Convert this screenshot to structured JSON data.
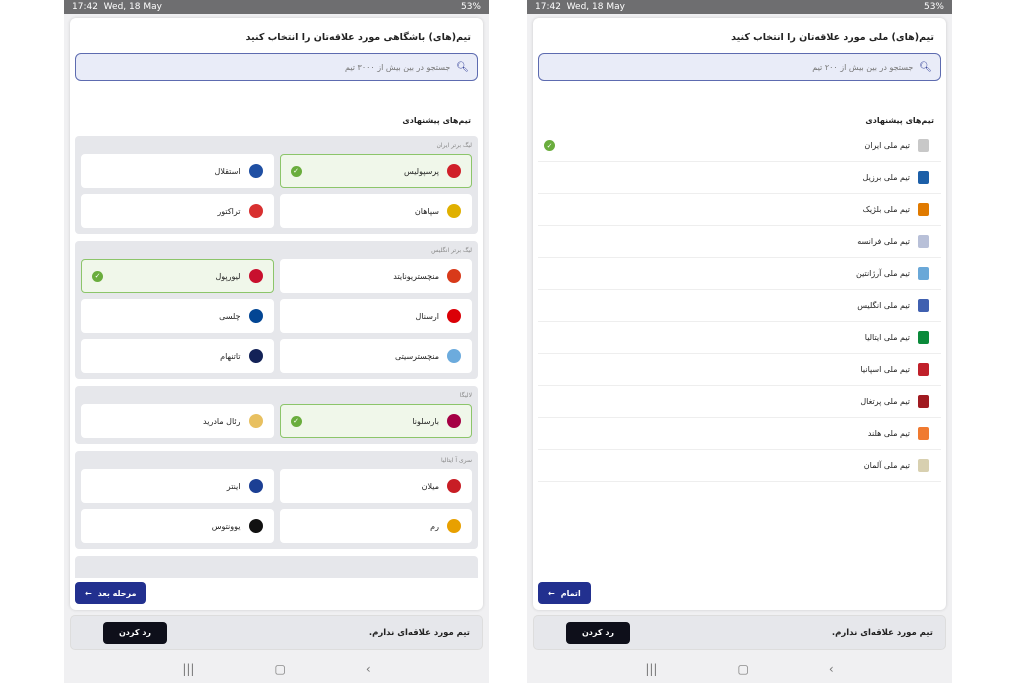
{
  "status": {
    "time": "17:42",
    "date": "Wed, 18 May",
    "battery": "53%"
  },
  "clubs": {
    "title": "تیم(های) باشگاهی مورد علاقه‌تان را انتخاب کنید",
    "search_placeholder": "جستجو در بین بیش از ۳۰۰۰ تیم",
    "suggested": "تیم‌های پیشنهادی",
    "groups": [
      {
        "label": "لیگ برتر ایران",
        "teams": [
          {
            "name": "پرسپولیس",
            "selected": true,
            "color": "#d0202a"
          },
          {
            "name": "استقلال",
            "selected": false,
            "color": "#1f4fa3"
          },
          {
            "name": "سپاهان",
            "selected": false,
            "color": "#e0b000"
          },
          {
            "name": "تراکتور",
            "selected": false,
            "color": "#d83030"
          }
        ]
      },
      {
        "label": "لیگ برتر انگلیس",
        "teams": [
          {
            "name": "منچستریونایتد",
            "selected": false,
            "color": "#d83a1a"
          },
          {
            "name": "لیورپول",
            "selected": true,
            "color": "#c8102e"
          },
          {
            "name": "ارسنال",
            "selected": false,
            "color": "#db0007"
          },
          {
            "name": "چلسی",
            "selected": false,
            "color": "#034694"
          },
          {
            "name": "منچسترسیتی",
            "selected": false,
            "color": "#6cabdd"
          },
          {
            "name": "تاتنهام",
            "selected": false,
            "color": "#132257"
          }
        ]
      },
      {
        "label": "لالیگا",
        "teams": [
          {
            "name": "بارسلونا",
            "selected": true,
            "color": "#a50044"
          },
          {
            "name": "رئال مادرید",
            "selected": false,
            "color": "#e8c060"
          }
        ]
      },
      {
        "label": "سری آ ایتالیا",
        "teams": [
          {
            "name": "میلان",
            "selected": false,
            "color": "#c81d25"
          },
          {
            "name": "اینتر",
            "selected": false,
            "color": "#1c3f94"
          },
          {
            "name": "رم",
            "selected": false,
            "color": "#e8a000"
          },
          {
            "name": "یوونتوس",
            "selected": false,
            "color": "#111111"
          }
        ]
      }
    ],
    "next_button": "مرحله بعد"
  },
  "nationals": {
    "title": "تیم(های) ملی مورد علاقه‌تان را انتخاب کنید",
    "search_placeholder": "جستجو در بین بیش از ۲۰۰ تیم",
    "suggested": "تیم‌های پیشنهادی",
    "teams": [
      {
        "name": "تیم ملی ایران",
        "selected": true,
        "color": "#c8c8c8"
      },
      {
        "name": "تیم ملی برزیل",
        "selected": false,
        "color": "#1c5fa8"
      },
      {
        "name": "تیم ملی بلژیک",
        "selected": false,
        "color": "#e07a00"
      },
      {
        "name": "تیم ملی فرانسه",
        "selected": false,
        "color": "#b8c0d8"
      },
      {
        "name": "تیم ملی آرژانتین",
        "selected": false,
        "color": "#6aa8d8"
      },
      {
        "name": "تیم ملی انگلیس",
        "selected": false,
        "color": "#4060b0"
      },
      {
        "name": "تیم ملی ایتالیا",
        "selected": false,
        "color": "#0a8a3a"
      },
      {
        "name": "تیم ملی اسپانیا",
        "selected": false,
        "color": "#c0202a"
      },
      {
        "name": "تیم ملی پرتغال",
        "selected": false,
        "color": "#a01a20"
      },
      {
        "name": "تیم ملی هلند",
        "selected": false,
        "color": "#f07a30"
      },
      {
        "name": "تیم ملی آلمان",
        "selected": false,
        "color": "#d8d0b0"
      }
    ],
    "finish_button": "اتمام"
  },
  "bottom": {
    "text": "تیم مورد علاقه‌ای ندارم.",
    "reject": "رد کردن"
  },
  "accent": "#22308f",
  "check_color": "#6aad3d"
}
